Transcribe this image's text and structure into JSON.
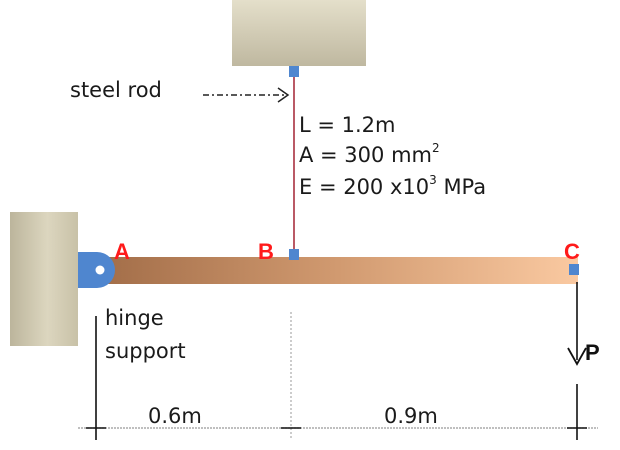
{
  "rod": {
    "label": "steel rod",
    "length": "L = 1.2m",
    "area": "A = 300 mm",
    "area_sup": "2",
    "modulus_a": "E = 200 x10",
    "modulus_sup": "3",
    "modulus_b": " MPa"
  },
  "points": {
    "a": "A",
    "b": "B",
    "c": "C"
  },
  "support": {
    "line1": "hinge",
    "line2": "support"
  },
  "load": {
    "label": "P"
  },
  "dimensions": {
    "ab": "0.6m",
    "bc": "0.9m"
  },
  "colors": {
    "wall": "#d3cdb4",
    "beam_dark": "#a4704b",
    "beam_light": "#f7c49c",
    "rod": "#a83040",
    "hinge": "#4f86cf",
    "point_label": "#ff1a1a"
  }
}
